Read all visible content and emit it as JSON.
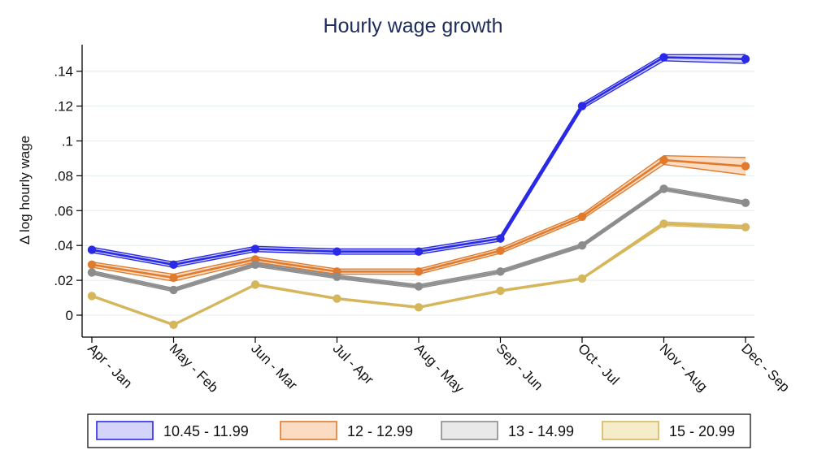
{
  "chart_data": {
    "type": "line",
    "title": "Hourly wage growth",
    "xlabel": "",
    "ylabel": "Δ log hourly wage",
    "categories": [
      "Apr - Jan",
      "May - Feb",
      "Jun - Mar",
      "Jul - Apr",
      "Aug - May",
      "Sep - Jun",
      "Oct - Jul",
      "Nov - Aug",
      "Dec - Sep"
    ],
    "yticks": [
      0,
      0.02,
      0.04,
      0.06,
      0.08,
      0.1,
      0.12,
      0.14
    ],
    "ytick_labels": [
      "0",
      ".02",
      ".04",
      ".06",
      ".08",
      ".1",
      ".12",
      ".14"
    ],
    "ylim": [
      -0.012,
      0.155
    ],
    "grid": true,
    "legend_position": "bottom",
    "series": [
      {
        "name": "10.45 - 11.99",
        "color": "#2a2ae6",
        "fill": "#d4d4fb",
        "values": [
          0.0375,
          0.029,
          0.038,
          0.0365,
          0.0365,
          0.044,
          0.12,
          0.148,
          0.147
        ],
        "lower": [
          0.036,
          0.0275,
          0.0365,
          0.035,
          0.035,
          0.0425,
          0.1185,
          0.146,
          0.1445
        ],
        "upper": [
          0.039,
          0.0305,
          0.0395,
          0.038,
          0.038,
          0.0455,
          0.1215,
          0.1495,
          0.1495
        ]
      },
      {
        "name": "12 - 12.99",
        "color": "#e07b2e",
        "fill": "#fbdcc2",
        "values": [
          0.029,
          0.0215,
          0.032,
          0.025,
          0.025,
          0.037,
          0.0565,
          0.089,
          0.0855
        ],
        "lower": [
          0.0275,
          0.0195,
          0.0305,
          0.0235,
          0.0235,
          0.0355,
          0.055,
          0.0865,
          0.0805
        ],
        "upper": [
          0.0305,
          0.0235,
          0.0335,
          0.0265,
          0.0265,
          0.0385,
          0.058,
          0.0915,
          0.0905
        ]
      },
      {
        "name": "13 - 14.99",
        "color": "#8c8c8c",
        "fill": "#e9e9e9",
        "values": [
          0.0245,
          0.0145,
          0.029,
          0.022,
          0.0165,
          0.025,
          0.04,
          0.0725,
          0.0645
        ],
        "lower": [
          0.0235,
          0.0135,
          0.028,
          0.021,
          0.0155,
          0.024,
          0.039,
          0.0715,
          0.0635
        ],
        "upper": [
          0.0255,
          0.0155,
          0.03,
          0.023,
          0.0175,
          0.026,
          0.041,
          0.0735,
          0.0655
        ]
      },
      {
        "name": "15 - 20.99",
        "color": "#d6b65c",
        "fill": "#f5edc9",
        "values": [
          0.011,
          -0.0055,
          0.0175,
          0.0095,
          0.0045,
          0.014,
          0.021,
          0.0525,
          0.0505
        ],
        "lower": [
          0.0105,
          -0.006,
          0.017,
          0.009,
          0.004,
          0.0135,
          0.0205,
          0.0515,
          0.0495
        ],
        "upper": [
          0.0115,
          -0.005,
          0.018,
          0.01,
          0.005,
          0.0145,
          0.0215,
          0.0535,
          0.0515
        ]
      }
    ]
  }
}
